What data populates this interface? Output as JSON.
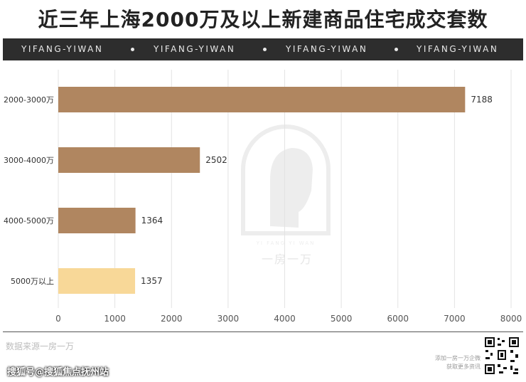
{
  "header": {
    "title": "近三年上海2000万及以上新建商品住宅成交套数",
    "banner_items": [
      "YIFANG-YIWAN",
      "YIFANG-YIWAN",
      "YIFANG-YIWAN",
      "YIFANG-YIWAN"
    ]
  },
  "chart_data": {
    "type": "bar",
    "orientation": "horizontal",
    "categories": [
      "2000-3000万",
      "3000-4000万",
      "4000-5000万",
      "5000万以上"
    ],
    "values": [
      7188,
      2502,
      1364,
      1357
    ],
    "bar_colors": [
      "#b08660",
      "#b08660",
      "#b08660",
      "#f8d898"
    ],
    "xlim": [
      0,
      8000
    ],
    "x_ticks": [
      0,
      1000,
      2000,
      3000,
      4000,
      5000,
      6000,
      7000,
      8000
    ],
    "grid": "vertical"
  },
  "watermark": {
    "text": "一房一万",
    "caption": "YI FANG YI WAN"
  },
  "source": "数据来源一房一万",
  "qr": {
    "caption_line1": "添加一房一万企微",
    "caption_line2": "获取更多资讯"
  },
  "footer": "搜狐号@搜狐焦点抚州站"
}
